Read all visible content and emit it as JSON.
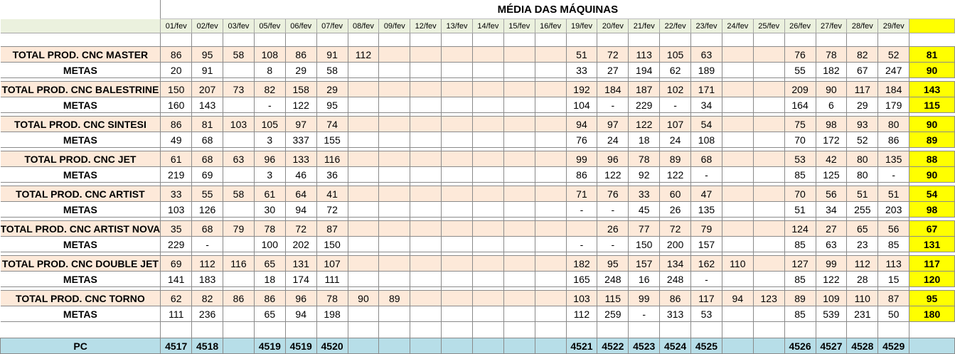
{
  "title": "MÉDIA DAS MÁQUINAS",
  "dates": [
    "01/fev",
    "02/fev",
    "03/fev",
    "05/fev",
    "06/fev",
    "07/fev",
    "08/fev",
    "09/fev",
    "12/fev",
    "13/fev",
    "14/fev",
    "15/fev",
    "16/fev",
    "19/fev",
    "20/fev",
    "21/fev",
    "22/fev",
    "23/fev",
    "24/fev",
    "25/fev",
    "26/fev",
    "27/fev",
    "28/fev",
    "29/fev"
  ],
  "machines": [
    {
      "prod_label": "TOTAL PROD. CNC MASTER",
      "prod": [
        "86",
        "95",
        "58",
        "108",
        "86",
        "91",
        "112",
        "",
        "",
        "",
        "",
        "",
        "",
        "51",
        "72",
        "113",
        "105",
        "63",
        "",
        "",
        "76",
        "78",
        "82",
        "52"
      ],
      "prod_avg": "81",
      "meta_label": "METAS",
      "meta": [
        "20",
        "91",
        "",
        "8",
        "29",
        "58",
        "",
        "",
        "",
        "",
        "",
        "",
        "",
        "33",
        "27",
        "194",
        "62",
        "189",
        "",
        "",
        "55",
        "182",
        "67",
        "247"
      ],
      "meta_avg": "90"
    },
    {
      "prod_label": "TOTAL PROD. CNC BALESTRINE",
      "prod": [
        "150",
        "207",
        "73",
        "82",
        "158",
        "29",
        "",
        "",
        "",
        "",
        "",
        "",
        "",
        "192",
        "184",
        "187",
        "102",
        "171",
        "",
        "",
        "209",
        "90",
        "117",
        "184"
      ],
      "prod_avg": "143",
      "meta_label": "METAS",
      "meta": [
        "160",
        "143",
        "",
        "-",
        "122",
        "95",
        "",
        "",
        "",
        "",
        "",
        "",
        "",
        "104",
        "-",
        "229",
        "-",
        "34",
        "",
        "",
        "164",
        "6",
        "29",
        "179"
      ],
      "meta_avg": "115"
    },
    {
      "prod_label": "TOTAL PROD. CNC SINTESI",
      "prod": [
        "86",
        "81",
        "103",
        "105",
        "97",
        "74",
        "",
        "",
        "",
        "",
        "",
        "",
        "",
        "94",
        "97",
        "122",
        "107",
        "54",
        "",
        "",
        "75",
        "98",
        "93",
        "80"
      ],
      "prod_avg": "90",
      "meta_label": "METAS",
      "meta": [
        "49",
        "68",
        "",
        "3",
        "337",
        "155",
        "",
        "",
        "",
        "",
        "",
        "",
        "",
        "76",
        "24",
        "18",
        "24",
        "108",
        "",
        "",
        "70",
        "172",
        "52",
        "86"
      ],
      "meta_avg": "89"
    },
    {
      "prod_label": "TOTAL PROD. CNC JET",
      "prod": [
        "61",
        "68",
        "63",
        "96",
        "133",
        "116",
        "",
        "",
        "",
        "",
        "",
        "",
        "",
        "99",
        "96",
        "78",
        "89",
        "68",
        "",
        "",
        "53",
        "42",
        "80",
        "135"
      ],
      "prod_avg": "88",
      "meta_label": "METAS",
      "meta": [
        "219",
        "69",
        "",
        "3",
        "46",
        "36",
        "",
        "",
        "",
        "",
        "",
        "",
        "",
        "86",
        "122",
        "92",
        "122",
        "-",
        "",
        "",
        "85",
        "125",
        "80",
        "-"
      ],
      "meta_avg": "90"
    },
    {
      "prod_label": "TOTAL PROD. CNC ARTIST",
      "prod": [
        "33",
        "55",
        "58",
        "61",
        "64",
        "41",
        "",
        "",
        "",
        "",
        "",
        "",
        "",
        "71",
        "76",
        "33",
        "60",
        "47",
        "",
        "",
        "70",
        "56",
        "51",
        "51"
      ],
      "prod_avg": "54",
      "meta_label": "METAS",
      "meta": [
        "103",
        "126",
        "",
        "30",
        "94",
        "72",
        "",
        "",
        "",
        "",
        "",
        "",
        "",
        "-",
        "-",
        "45",
        "26",
        "135",
        "",
        "",
        "51",
        "34",
        "255",
        "203"
      ],
      "meta_avg": "98"
    },
    {
      "prod_label": "TOTAL PROD. CNC ARTIST NOVA",
      "prod": [
        "35",
        "68",
        "79",
        "78",
        "72",
        "87",
        "",
        "",
        "",
        "",
        "",
        "",
        "",
        "",
        "26",
        "77",
        "72",
        "79",
        "",
        "",
        "124",
        "27",
        "65",
        "56"
      ],
      "prod_avg": "67",
      "meta_label": "METAS",
      "meta": [
        "229",
        "-",
        "",
        "100",
        "202",
        "150",
        "",
        "",
        "",
        "",
        "",
        "",
        "",
        "-",
        "-",
        "150",
        "200",
        "157",
        "",
        "",
        "85",
        "63",
        "23",
        "85"
      ],
      "meta_avg": "131"
    },
    {
      "prod_label": "TOTAL PROD. CNC DOUBLE JET",
      "prod": [
        "69",
        "112",
        "116",
        "65",
        "131",
        "107",
        "",
        "",
        "",
        "",
        "",
        "",
        "",
        "182",
        "95",
        "157",
        "134",
        "162",
        "110",
        "",
        "127",
        "99",
        "112",
        "113"
      ],
      "prod_avg": "117",
      "meta_label": "METAS",
      "meta": [
        "141",
        "183",
        "",
        "18",
        "174",
        "111",
        "",
        "",
        "",
        "",
        "",
        "",
        "",
        "165",
        "248",
        "16",
        "248",
        "-",
        "",
        "",
        "85",
        "122",
        "28",
        "15"
      ],
      "meta_avg": "120"
    },
    {
      "prod_label": "TOTAL PROD. CNC TORNO",
      "prod": [
        "62",
        "82",
        "86",
        "86",
        "96",
        "78",
        "90",
        "89",
        "",
        "",
        "",
        "",
        "",
        "103",
        "115",
        "99",
        "86",
        "117",
        "94",
        "123",
        "89",
        "109",
        "110",
        "87"
      ],
      "prod_avg": "95",
      "meta_label": "METAS",
      "meta": [
        "111",
        "236",
        "",
        "65",
        "94",
        "198",
        "",
        "",
        "",
        "",
        "",
        "",
        "",
        "112",
        "259",
        "-",
        "313",
        "53",
        "",
        "",
        "85",
        "539",
        "231",
        "50"
      ],
      "meta_avg": "180"
    }
  ],
  "pc": {
    "label": "PC",
    "values": [
      "4517",
      "4518",
      "",
      "4519",
      "4519",
      "4520",
      "",
      "",
      "",
      "",
      "",
      "",
      "",
      "4521",
      "4522",
      "4523",
      "4524",
      "4525",
      "",
      "",
      "4526",
      "4527",
      "4528",
      "4529"
    ],
    "avg": ""
  }
}
